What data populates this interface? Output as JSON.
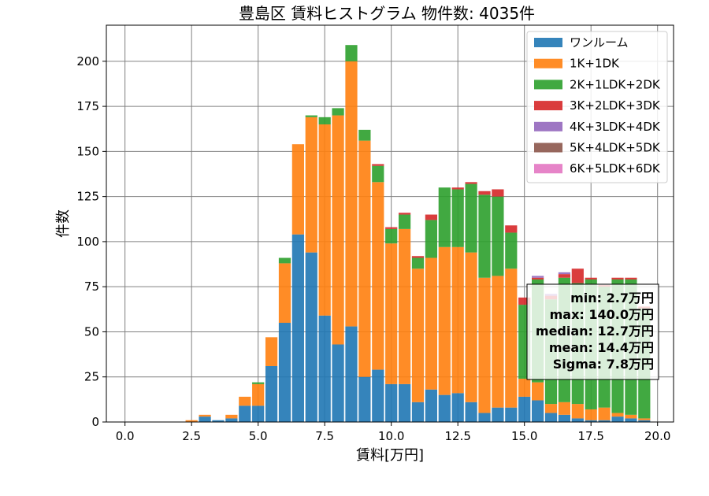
{
  "chart_data": {
    "type": "bar",
    "stacked": true,
    "title": "豊島区 賃料ヒストグラム 物件数: 4035件",
    "xlabel": "賃料[万円]",
    "ylabel": "件数",
    "xlim": [
      -0.7,
      20.6
    ],
    "ylim": [
      0,
      220
    ],
    "xticks": [
      "0.0",
      "2.5",
      "5.0",
      "7.5",
      "10.0",
      "12.5",
      "15.0",
      "17.5",
      "20.0"
    ],
    "yticks": [
      "0",
      "25",
      "50",
      "75",
      "100",
      "125",
      "150",
      "175",
      "200"
    ],
    "grid": true,
    "legend_position": "top-right",
    "bin_width": 0.5,
    "x": [
      2.0,
      2.5,
      3.0,
      3.5,
      4.0,
      4.5,
      5.0,
      5.5,
      6.0,
      6.5,
      7.0,
      7.5,
      8.0,
      8.5,
      9.0,
      9.5,
      10.0,
      10.5,
      11.0,
      11.5,
      12.0,
      12.5,
      13.0,
      13.5,
      14.0,
      14.5,
      15.0,
      15.5,
      16.0,
      16.5,
      17.0,
      17.5,
      18.0,
      18.5,
      19.0,
      19.5
    ],
    "series": [
      {
        "name": "ワンルーム",
        "color": "#1f77b4",
        "values": [
          0,
          0,
          3,
          1,
          2,
          9,
          9,
          31,
          55,
          104,
          94,
          59,
          43,
          53,
          25,
          29,
          21,
          21,
          11,
          18,
          15,
          16,
          11,
          5,
          8,
          8,
          14,
          12,
          5,
          4,
          2,
          1,
          1,
          3,
          2,
          1
        ]
      },
      {
        "name": "1K+1DK",
        "color": "#ff7f0e",
        "values": [
          0,
          1,
          1,
          0,
          2,
          5,
          12,
          16,
          33,
          50,
          75,
          106,
          127,
          147,
          131,
          104,
          78,
          86,
          74,
          73,
          82,
          81,
          83,
          75,
          73,
          77,
          10,
          10,
          5,
          7,
          8,
          6,
          7,
          2,
          2,
          1
        ]
      },
      {
        "name": "2K+1LDK+2DK",
        "color": "#2ca02c",
        "values": [
          0,
          0,
          0,
          0,
          0,
          0,
          1,
          0,
          3,
          0,
          1,
          4,
          4,
          9,
          6,
          9,
          8,
          8,
          6,
          21,
          33,
          32,
          38,
          46,
          44,
          20,
          41,
          57,
          58,
          69,
          67,
          72,
          67,
          74,
          75,
          61
        ]
      },
      {
        "name": "3K+2LDK+3DK",
        "color": "#d62728",
        "values": [
          0,
          0,
          0,
          0,
          0,
          0,
          0,
          0,
          0,
          0,
          0,
          0,
          0,
          0,
          0,
          1,
          1,
          1,
          1,
          3,
          0,
          1,
          1,
          2,
          4,
          4,
          4,
          1,
          2,
          2,
          8,
          1,
          1,
          1,
          1,
          1
        ]
      },
      {
        "name": "4K+3LDK+4DK",
        "color": "#9467bd",
        "values": [
          0,
          0,
          0,
          0,
          0,
          0,
          0,
          0,
          0,
          0,
          0,
          0,
          0,
          0,
          0,
          0,
          0,
          0,
          0,
          0,
          0,
          0,
          0,
          0,
          0,
          0,
          0,
          1,
          1,
          1,
          0,
          0,
          0,
          0,
          0,
          0
        ]
      },
      {
        "name": "5K+4LDK+5DK",
        "color": "#8c564b",
        "values": [
          0,
          0,
          0,
          0,
          0,
          0,
          0,
          0,
          0,
          0,
          0,
          0,
          0,
          0,
          0,
          0,
          0,
          0,
          0,
          0,
          0,
          0,
          0,
          0,
          0,
          0,
          0,
          0,
          0,
          0,
          0,
          0,
          0,
          0,
          0,
          0
        ]
      },
      {
        "name": "6K+5LDK+6DK",
        "color": "#e377c2",
        "values": [
          0,
          0,
          0,
          0,
          0,
          0,
          0,
          0,
          0,
          0,
          0,
          0,
          0,
          0,
          0,
          0,
          0,
          0,
          0,
          0,
          0,
          0,
          0,
          0,
          0,
          0,
          0,
          0,
          0,
          0,
          0,
          0,
          0,
          0,
          0,
          0
        ]
      }
    ],
    "stats": [
      "min: 2.7万円",
      "max: 140.0万円",
      "median: 12.7万円",
      "mean: 14.4万円",
      "Sigma: 7.8万円"
    ]
  }
}
